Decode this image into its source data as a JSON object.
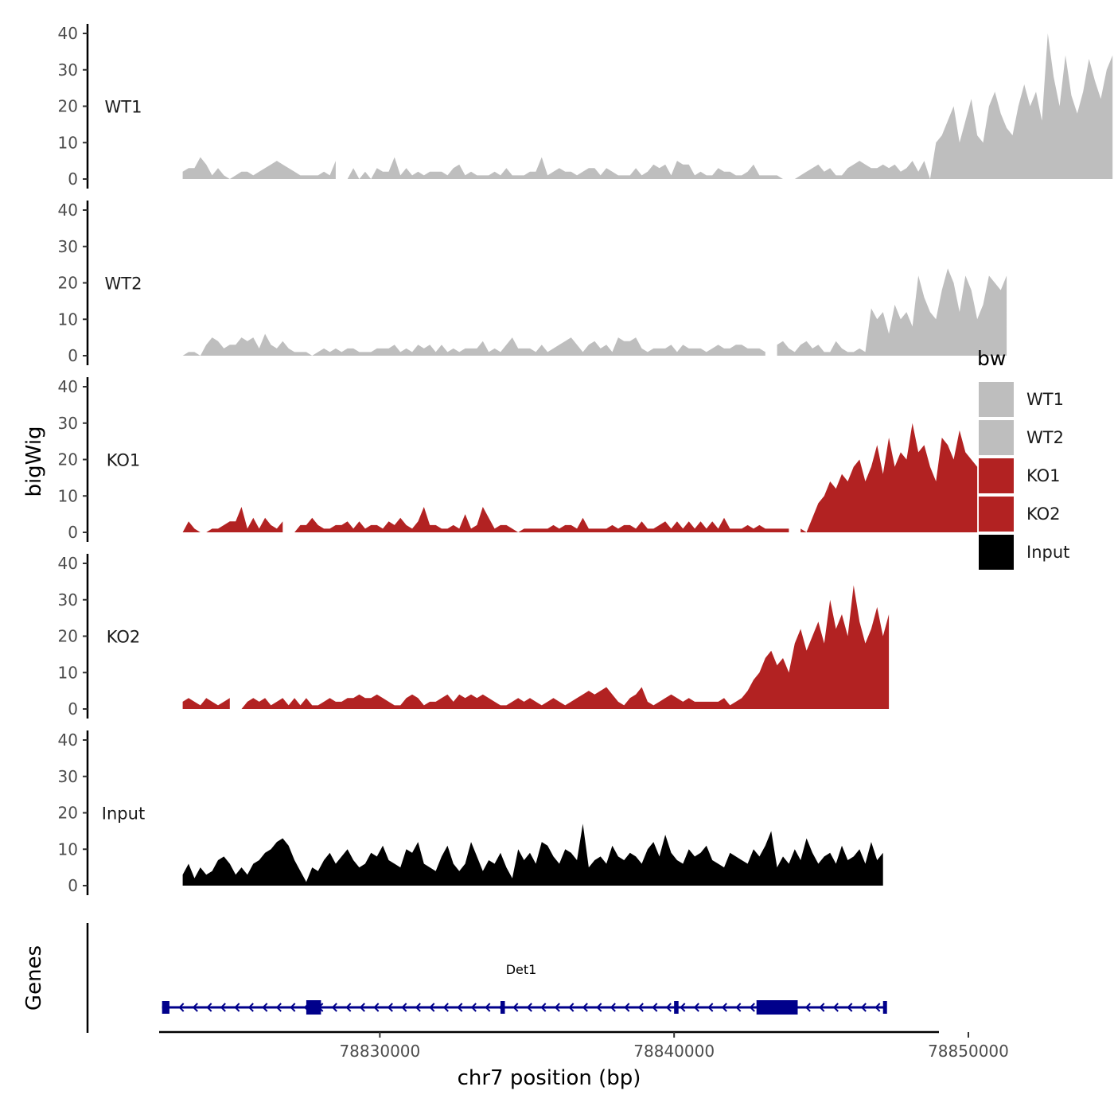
{
  "chart_data": {
    "type": "area",
    "title": "",
    "ylabel": "bigWig",
    "xlabel": "chr7 position (bp)",
    "genes_label": "Genes",
    "ylim": [
      0,
      40
    ],
    "y_ticks": [
      0,
      10,
      20,
      30,
      40
    ],
    "x_range": [
      78822500,
      78849000
    ],
    "x_ticks": [
      {
        "value": 78830000,
        "label": "78830000"
      },
      {
        "value": 78840000,
        "label": "78840000"
      },
      {
        "value": 78850000,
        "label": "78850000"
      }
    ],
    "x_start": 78823300,
    "x_step": 200,
    "legend": {
      "title": "bw",
      "entries": [
        {
          "name": "WT1",
          "color": "#bebebe"
        },
        {
          "name": "WT2",
          "color": "#bebebe"
        },
        {
          "name": "KO1",
          "color": "#b22222"
        },
        {
          "name": "KO2",
          "color": "#b22222"
        },
        {
          "name": "Input",
          "color": "#000000"
        }
      ]
    },
    "series": [
      {
        "name": "WT1",
        "color": "#bebebe",
        "values": [
          2,
          3,
          3,
          6,
          4,
          1,
          3,
          1,
          0,
          1,
          2,
          2,
          1,
          2,
          3,
          4,
          5,
          4,
          3,
          2,
          1,
          1,
          1,
          1,
          2,
          1,
          5,
          null,
          0,
          3,
          0,
          2,
          0,
          3,
          2,
          2,
          6,
          1,
          3,
          1,
          2,
          1,
          2,
          2,
          2,
          1,
          3,
          4,
          1,
          2,
          1,
          1,
          1,
          2,
          1,
          3,
          1,
          1,
          1,
          2,
          2,
          6,
          1,
          2,
          3,
          2,
          2,
          1,
          2,
          3,
          3,
          1,
          3,
          2,
          1,
          1,
          1,
          3,
          1,
          2,
          4,
          3,
          4,
          1,
          5,
          4,
          4,
          1,
          2,
          1,
          1,
          3,
          2,
          2,
          1,
          1,
          2,
          4,
          1,
          1,
          1,
          1,
          0,
          0,
          0,
          1,
          2,
          3,
          4,
          2,
          3,
          1,
          1,
          3,
          4,
          5,
          4,
          3,
          3,
          4,
          3,
          4,
          2,
          3,
          5,
          2,
          5,
          0,
          10,
          12,
          16,
          20,
          10,
          16,
          22,
          12,
          10,
          20,
          24,
          18,
          14,
          12,
          20,
          26,
          20,
          24,
          16,
          40,
          28,
          20,
          34,
          23,
          18,
          24,
          33,
          27,
          22,
          30,
          34
        ],
        "starts": [
          0,
          29
        ]
      },
      {
        "name": "WT2",
        "color": "#bebebe",
        "values": [
          0,
          1,
          1,
          0,
          3,
          5,
          4,
          2,
          3,
          3,
          5,
          4,
          5,
          2,
          6,
          3,
          2,
          4,
          2,
          1,
          1,
          1,
          0,
          1,
          2,
          1,
          2,
          1,
          2,
          2,
          1,
          1,
          1,
          2,
          2,
          2,
          3,
          1,
          2,
          1,
          3,
          2,
          3,
          1,
          3,
          1,
          2,
          1,
          2,
          2,
          2,
          4,
          1,
          2,
          1,
          3,
          5,
          2,
          2,
          2,
          1,
          3,
          1,
          2,
          3,
          4,
          5,
          3,
          1,
          3,
          4,
          2,
          3,
          1,
          5,
          4,
          4,
          5,
          2,
          1,
          2,
          2,
          2,
          3,
          1,
          3,
          2,
          2,
          2,
          1,
          2,
          3,
          2,
          2,
          3,
          3,
          2,
          2,
          2,
          1,
          null,
          3,
          4,
          2,
          1,
          3,
          4,
          2,
          3,
          1,
          1,
          4,
          2,
          1,
          1,
          2,
          1,
          13,
          10,
          12,
          6,
          14,
          10,
          12,
          8,
          22,
          16,
          12,
          10,
          18,
          24,
          20,
          12,
          22,
          18,
          10,
          14,
          22,
          20,
          18,
          22
        ],
        "starts": [
          0,
          101
        ]
      },
      {
        "name": "KO1",
        "color": "#b22222",
        "values": [
          0,
          3,
          1,
          0,
          0,
          1,
          1,
          2,
          3,
          3,
          7,
          1,
          4,
          1,
          4,
          2,
          1,
          3,
          null,
          0,
          2,
          2,
          4,
          2,
          1,
          1,
          2,
          2,
          3,
          1,
          3,
          1,
          2,
          2,
          1,
          3,
          2,
          4,
          2,
          1,
          3,
          7,
          2,
          2,
          1,
          1,
          2,
          1,
          5,
          1,
          2,
          7,
          4,
          1,
          2,
          2,
          1,
          0,
          1,
          1,
          1,
          1,
          1,
          2,
          1,
          2,
          2,
          1,
          4,
          1,
          1,
          1,
          1,
          2,
          1,
          2,
          2,
          1,
          3,
          1,
          1,
          2,
          3,
          1,
          3,
          1,
          3,
          1,
          3,
          1,
          3,
          1,
          4,
          1,
          1,
          1,
          2,
          1,
          2,
          1,
          1,
          1,
          1,
          1,
          null,
          1,
          0,
          4,
          8,
          10,
          14,
          12,
          16,
          14,
          18,
          20,
          14,
          18,
          24,
          16,
          26,
          18,
          22,
          20,
          30,
          22,
          24,
          18,
          14,
          26,
          24,
          20,
          28,
          22,
          20,
          18
        ],
        "starts": [
          1,
          19,
          105
        ]
      },
      {
        "name": "KO2",
        "color": "#b22222",
        "values": [
          2,
          3,
          2,
          1,
          3,
          2,
          1,
          2,
          3,
          null,
          0,
          2,
          3,
          2,
          3,
          1,
          2,
          3,
          1,
          3,
          1,
          3,
          1,
          1,
          2,
          3,
          2,
          2,
          3,
          3,
          4,
          3,
          3,
          4,
          3,
          2,
          1,
          1,
          3,
          4,
          3,
          1,
          2,
          2,
          3,
          4,
          2,
          4,
          3,
          4,
          3,
          4,
          3,
          2,
          1,
          1,
          2,
          3,
          2,
          3,
          2,
          1,
          2,
          3,
          2,
          1,
          2,
          3,
          4,
          5,
          4,
          5,
          6,
          4,
          2,
          1,
          3,
          4,
          6,
          2,
          1,
          2,
          3,
          4,
          3,
          2,
          3,
          2,
          2,
          2,
          2,
          2,
          3,
          1,
          2,
          3,
          5,
          8,
          10,
          14,
          16,
          12,
          14,
          10,
          18,
          22,
          16,
          20,
          24,
          18,
          30,
          22,
          26,
          20,
          34,
          24,
          18,
          22,
          28,
          20,
          26
        ],
        "starts": [
          0,
          10
        ]
      },
      {
        "name": "Input",
        "color": "#000000",
        "values": [
          3,
          6,
          2,
          5,
          3,
          4,
          7,
          8,
          6,
          3,
          5,
          3,
          6,
          7,
          9,
          10,
          12,
          13,
          11,
          7,
          4,
          1,
          5,
          4,
          7,
          9,
          6,
          8,
          10,
          7,
          5,
          6,
          9,
          8,
          11,
          7,
          6,
          5,
          10,
          9,
          12,
          6,
          5,
          4,
          8,
          11,
          6,
          4,
          6,
          12,
          8,
          4,
          7,
          6,
          9,
          5,
          2,
          10,
          7,
          9,
          6,
          12,
          11,
          8,
          6,
          10,
          9,
          7,
          17,
          5,
          7,
          8,
          6,
          11,
          8,
          7,
          9,
          8,
          6,
          10,
          12,
          8,
          14,
          9,
          7,
          6,
          10,
          8,
          9,
          11,
          7,
          6,
          5,
          9,
          8,
          7,
          6,
          10,
          8,
          11,
          15,
          5,
          8,
          6,
          10,
          7,
          13,
          9,
          6,
          8,
          9,
          6,
          11,
          7,
          8,
          10,
          6,
          12,
          7,
          9
        ],
        "starts": [
          0
        ]
      }
    ],
    "gene": {
      "name": "Det1",
      "color": "#00008b",
      "start": 78822600,
      "end": 78847200,
      "strand": "-",
      "exons": [
        [
          78822600,
          78822850
        ],
        [
          78827500,
          78828000
        ],
        [
          78834100,
          78834250
        ],
        [
          78840000,
          78840150
        ],
        [
          78842800,
          78844200
        ],
        [
          78847100,
          78847200
        ]
      ]
    }
  }
}
